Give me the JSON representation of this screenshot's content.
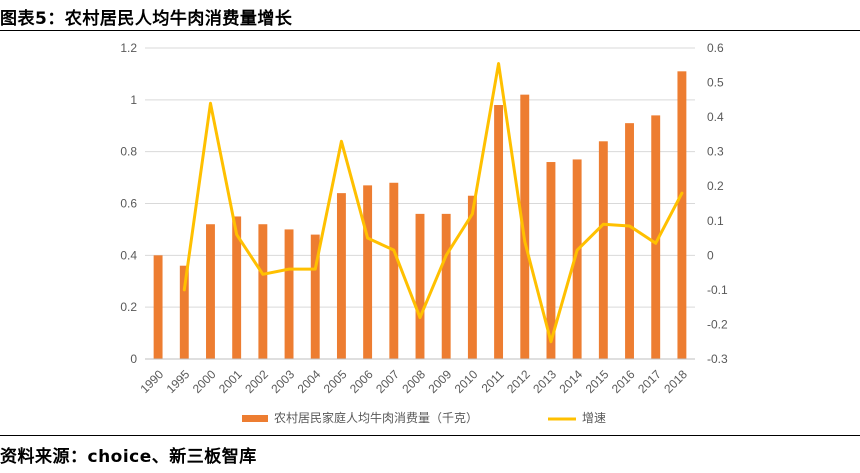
{
  "header": {
    "title": "图表5：农村居民人均牛肉消费量增长"
  },
  "footer": {
    "source": "资料来源：choice、新三板智库"
  },
  "chart_data": {
    "type": "bar",
    "categories": [
      "1990",
      "1995",
      "2000",
      "2001",
      "2002",
      "2003",
      "2004",
      "2005",
      "2006",
      "2007",
      "2008",
      "2009",
      "2010",
      "2011",
      "2012",
      "2013",
      "2014",
      "2015",
      "2016",
      "2017",
      "2018"
    ],
    "series": [
      {
        "name": "农村居民家庭人均牛肉消费量（千克）",
        "type": "bar",
        "axis": "left",
        "color": "#ED7D31",
        "values": [
          0.4,
          0.36,
          0.52,
          0.55,
          0.52,
          0.5,
          0.48,
          0.64,
          0.67,
          0.68,
          0.56,
          0.56,
          0.63,
          0.98,
          1.02,
          0.76,
          0.77,
          0.84,
          0.91,
          0.94,
          1.11
        ]
      },
      {
        "name": "增速",
        "type": "line",
        "axis": "right",
        "color": "#FFC000",
        "values": [
          null,
          -0.1,
          0.44,
          0.06,
          -0.055,
          -0.04,
          -0.04,
          0.33,
          0.05,
          0.015,
          -0.18,
          0.0,
          0.12,
          0.555,
          0.04,
          -0.25,
          0.015,
          0.09,
          0.085,
          0.035,
          0.18
        ]
      }
    ],
    "left_axis": {
      "min": 0,
      "max": 1.2,
      "ticks": [
        0,
        0.2,
        0.4,
        0.6,
        0.8,
        1,
        1.2
      ]
    },
    "right_axis": {
      "min": -0.3,
      "max": 0.6,
      "ticks": [
        -0.3,
        -0.2,
        -0.1,
        0,
        0.1,
        0.2,
        0.3,
        0.4,
        0.5,
        0.6
      ]
    },
    "grid": true,
    "legend": "bottom"
  }
}
